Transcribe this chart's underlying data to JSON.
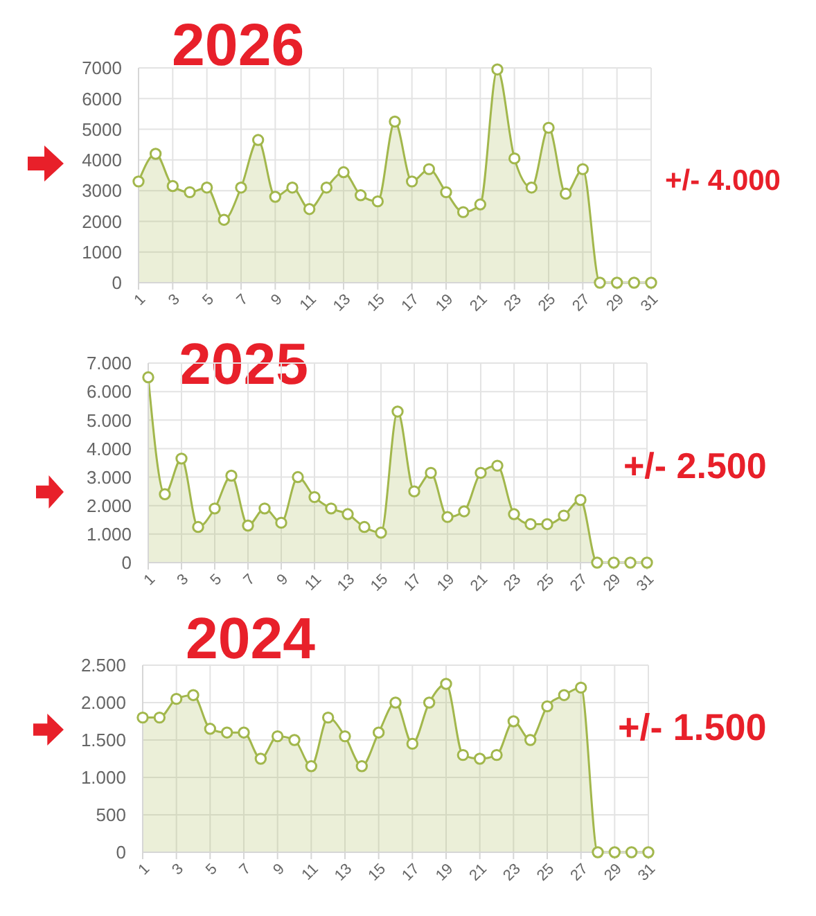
{
  "chart_data": [
    {
      "type": "area",
      "title": "2026",
      "annotations": [
        "+/- 4.000"
      ],
      "x": [
        1,
        2,
        3,
        4,
        5,
        6,
        7,
        8,
        9,
        10,
        11,
        12,
        13,
        14,
        15,
        16,
        17,
        18,
        19,
        20,
        21,
        22,
        23,
        24,
        25,
        26,
        27,
        28,
        29,
        30,
        31
      ],
      "values": [
        3300,
        4200,
        3150,
        2950,
        3100,
        2050,
        3100,
        4650,
        2800,
        3100,
        2400,
        3100,
        3600,
        2850,
        2650,
        5250,
        3300,
        3700,
        2950,
        2300,
        2550,
        6950,
        4050,
        3100,
        5050,
        2900,
        3700,
        0,
        0,
        0,
        0
      ],
      "color": "#a2b74c",
      "xlim": [
        1,
        31
      ],
      "xticks": [
        1,
        3,
        5,
        7,
        9,
        11,
        13,
        15,
        17,
        19,
        21,
        23,
        25,
        27,
        29,
        31
      ],
      "ylim": [
        0,
        7000
      ],
      "yticks": [
        0,
        1000,
        2000,
        3000,
        4000,
        5000,
        6000,
        7000
      ],
      "grid": true,
      "marker": "circle"
    },
    {
      "type": "area",
      "title": "2025",
      "annotations": [
        "+/- 2.500"
      ],
      "x": [
        1,
        2,
        3,
        4,
        5,
        6,
        7,
        8,
        9,
        10,
        11,
        12,
        13,
        14,
        15,
        16,
        17,
        18,
        19,
        20,
        21,
        22,
        23,
        24,
        25,
        26,
        27,
        28,
        29,
        30,
        31
      ],
      "values": [
        6500,
        2400,
        3650,
        1250,
        1900,
        3050,
        1300,
        1900,
        1400,
        3000,
        2300,
        1900,
        1700,
        1250,
        1050,
        5300,
        2500,
        3150,
        1600,
        1800,
        3150,
        3400,
        1700,
        1350,
        1350,
        1650,
        2200,
        0,
        0,
        0,
        0
      ],
      "color": "#a2b74c",
      "xlim": [
        1,
        31
      ],
      "xticks": [
        1,
        3,
        5,
        7,
        9,
        11,
        13,
        15,
        17,
        19,
        21,
        23,
        25,
        27,
        29,
        31
      ],
      "ylim": [
        0,
        7000
      ],
      "yticks": [
        0,
        {
          "value": 1000,
          "label": "1.000"
        },
        {
          "value": 2000,
          "label": "2.000"
        },
        {
          "value": 3000,
          "label": "3.000"
        },
        {
          "value": 4000,
          "label": "4.000"
        },
        {
          "value": 5000,
          "label": "5.000"
        },
        {
          "value": 6000,
          "label": "6.000"
        },
        {
          "value": 7000,
          "label": "7.000"
        }
      ],
      "grid": true,
      "marker": "circle"
    },
    {
      "type": "area",
      "title": "2024",
      "annotations": [
        "+/- 1.500"
      ],
      "x": [
        1,
        2,
        3,
        4,
        5,
        6,
        7,
        8,
        9,
        10,
        11,
        12,
        13,
        14,
        15,
        16,
        17,
        18,
        19,
        20,
        21,
        22,
        23,
        24,
        25,
        26,
        27,
        28,
        29,
        30,
        31
      ],
      "values": [
        1800,
        1800,
        2050,
        2100,
        1650,
        1600,
        1600,
        1250,
        1550,
        1500,
        1150,
        1800,
        1550,
        1150,
        1600,
        2000,
        1450,
        2000,
        2250,
        1300,
        1250,
        1300,
        1750,
        1500,
        1950,
        2100,
        2200,
        0,
        0,
        0,
        0
      ],
      "color": "#a2b74c",
      "xlim": [
        1,
        31
      ],
      "xticks": [
        1,
        3,
        5,
        7,
        9,
        11,
        13,
        15,
        17,
        19,
        21,
        23,
        25,
        27,
        29,
        31
      ],
      "ylim": [
        0,
        2500
      ],
      "yticks": [
        0,
        500,
        {
          "value": 1000,
          "label": "1.000"
        },
        {
          "value": 1500,
          "label": "1.500"
        },
        {
          "value": 2000,
          "label": "2.000"
        },
        {
          "value": 2500,
          "label": "2.500"
        }
      ],
      "grid": true,
      "marker": "circle"
    }
  ]
}
